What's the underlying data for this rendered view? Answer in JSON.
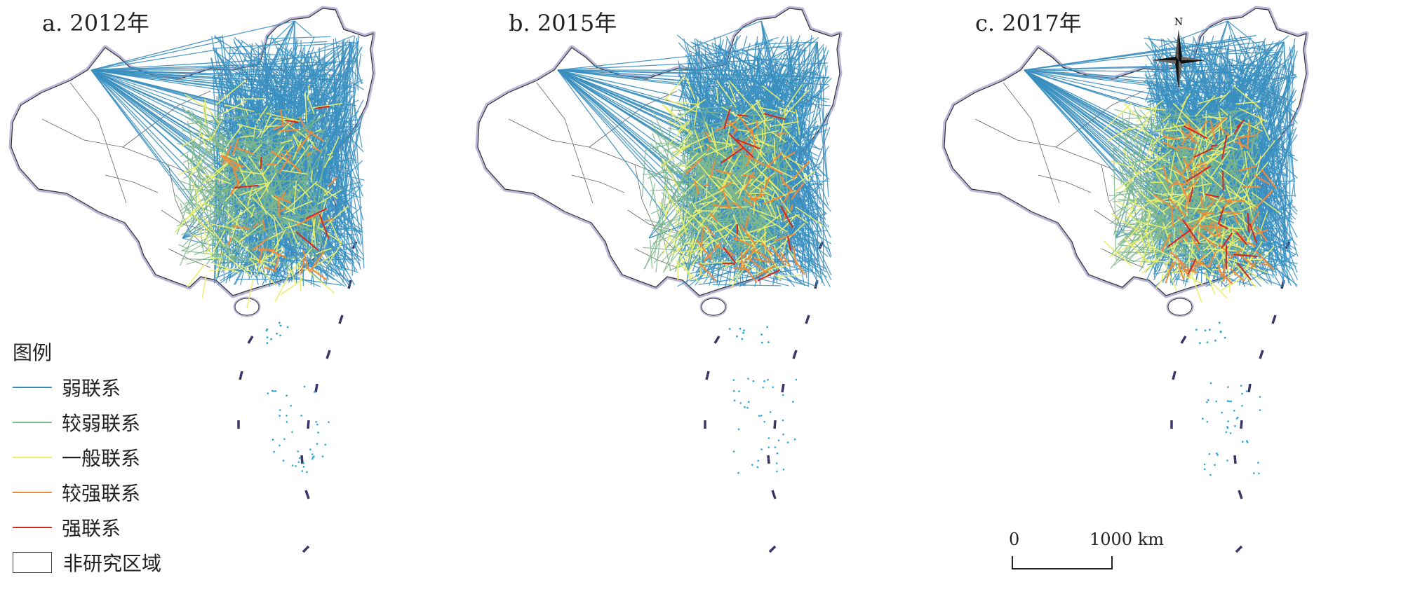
{
  "panels": [
    {
      "title": "a. 2012年"
    },
    {
      "title": "b. 2015年"
    },
    {
      "title": "c. 2017年"
    }
  ],
  "legend": {
    "title": "图例",
    "items": [
      {
        "label": "弱联系",
        "color": "#3a8fbf"
      },
      {
        "label": "较弱联系",
        "color": "#7fb88a"
      },
      {
        "label": "一般联系",
        "color": "#e9ee6a"
      },
      {
        "label": "较强联系",
        "color": "#f08a3a"
      },
      {
        "label": "强联系",
        "color": "#d7261e"
      }
    ],
    "non_study_label": "非研究区域"
  },
  "scale": {
    "zero": "0",
    "max": "1000 km"
  },
  "north_label": "N",
  "colors": {
    "boundary": "#333333",
    "coast_halo": "#b9b6d8",
    "water_islands": "#2aa7d8"
  }
}
